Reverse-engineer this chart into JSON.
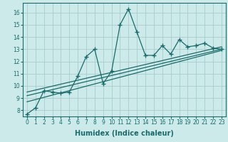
{
  "xlabel": "Humidex (Indice chaleur)",
  "bg_color": "#cceaea",
  "grid_color": "#aacccc",
  "line_color": "#1a6b6b",
  "xlim": [
    -0.5,
    23.5
  ],
  "ylim": [
    7.5,
    16.8
  ],
  "xticks": [
    0,
    1,
    2,
    3,
    4,
    5,
    6,
    7,
    8,
    9,
    10,
    11,
    12,
    13,
    14,
    15,
    16,
    17,
    18,
    19,
    20,
    21,
    22,
    23
  ],
  "yticks": [
    8,
    9,
    10,
    11,
    12,
    13,
    14,
    15,
    16
  ],
  "jagged_x": [
    0,
    1,
    2,
    3,
    4,
    5,
    6,
    7,
    8,
    9,
    10,
    11,
    12,
    13,
    14,
    15,
    16,
    17,
    18,
    19,
    20,
    21,
    22,
    23
  ],
  "jagged_y": [
    7.7,
    8.2,
    9.6,
    9.5,
    9.4,
    9.5,
    10.8,
    12.4,
    13.0,
    10.2,
    11.2,
    15.0,
    16.3,
    14.4,
    12.5,
    12.5,
    13.3,
    12.6,
    13.8,
    13.2,
    13.3,
    13.5,
    13.1,
    13.0
  ],
  "line1_x": [
    0,
    23
  ],
  "line1_y": [
    9.5,
    13.2
  ],
  "line2_x": [
    0,
    23
  ],
  "line2_y": [
    9.2,
    13.0
  ],
  "line3_x": [
    0,
    23
  ],
  "line3_y": [
    8.7,
    12.9
  ]
}
